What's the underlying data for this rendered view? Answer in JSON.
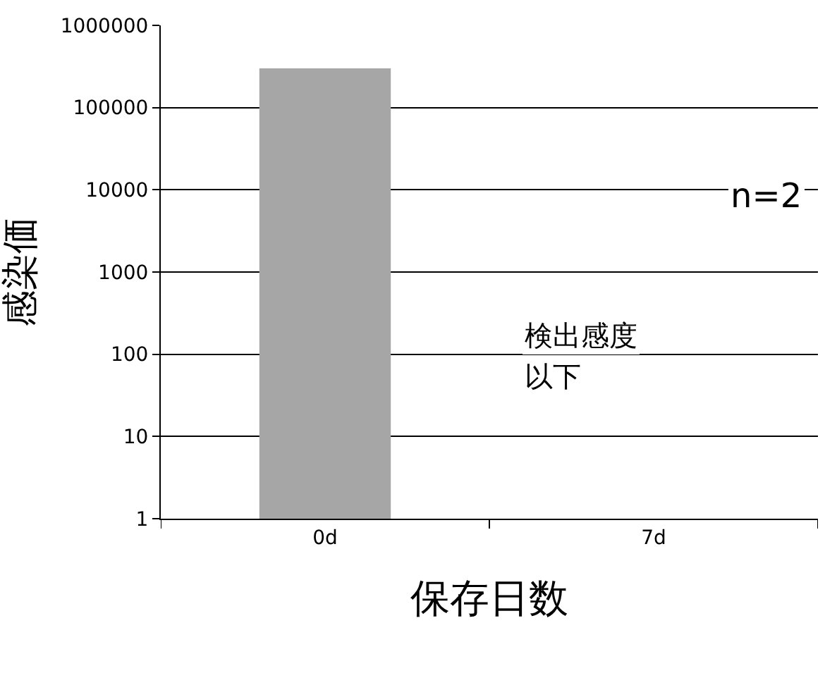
{
  "chart_data": {
    "type": "bar",
    "xlabel": "保存日数",
    "ylabel": "感染価",
    "categories": [
      "0d",
      "7d"
    ],
    "values": [
      300000,
      null
    ],
    "color": "#a6a6a6",
    "log": true,
    "ylim": [
      1,
      1000000
    ],
    "yticks": [
      1,
      10,
      100,
      1000,
      10000,
      100000,
      1000000
    ],
    "grid": "y",
    "annotations": [
      "n=2",
      "検出感度",
      "以下"
    ]
  }
}
